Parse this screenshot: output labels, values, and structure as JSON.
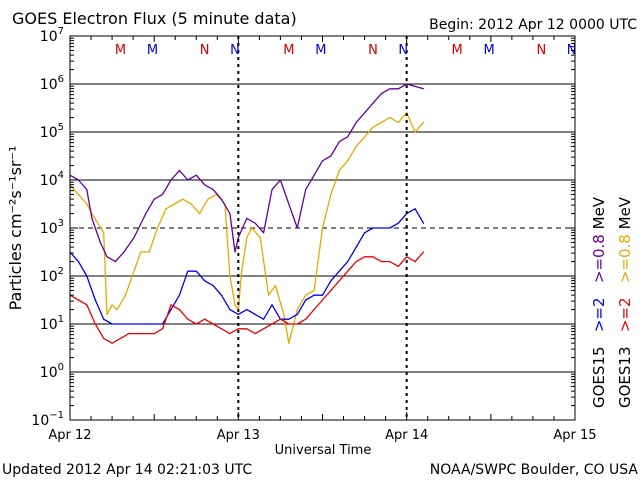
{
  "chart_data": {
    "type": "line",
    "title": "GOES Electron Flux (5 minute data)",
    "begin_label": "Begin: 2012 Apr 12 0000 UTC",
    "xlabel": "Universal Time",
    "ylabel": "Particles cm⁻²s⁻¹sr⁻¹",
    "x_ticks": [
      "Apr 12",
      "Apr 13",
      "Apr 14",
      "Apr 15"
    ],
    "xlim_days": [
      0,
      3
    ],
    "ylim_log10": [
      -1,
      7
    ],
    "y_tick_exponents": [
      7,
      6,
      5,
      4,
      3,
      2,
      1,
      0,
      -1
    ],
    "y_tick_base": "10",
    "alert_threshold_exponent": 3,
    "updated": "Updated 2012 Apr 14 02:21:03 UTC",
    "source": "NOAA/SWPC Boulder, CO USA",
    "markers": [
      {
        "label": "M",
        "satellite": "GOES13",
        "t": 0.3
      },
      {
        "label": "M",
        "satellite": "GOES15",
        "t": 0.49
      },
      {
        "label": "N",
        "satellite": "GOES13",
        "t": 0.8
      },
      {
        "label": "N",
        "satellite": "GOES15",
        "t": 0.98
      },
      {
        "label": "M",
        "satellite": "GOES13",
        "t": 1.3
      },
      {
        "label": "M",
        "satellite": "GOES15",
        "t": 1.49
      },
      {
        "label": "N",
        "satellite": "GOES13",
        "t": 1.8
      },
      {
        "label": "N",
        "satellite": "GOES15",
        "t": 1.98
      },
      {
        "label": "M",
        "satellite": "GOES13",
        "t": 2.3
      },
      {
        "label": "M",
        "satellite": "GOES15",
        "t": 2.49
      },
      {
        "label": "N",
        "satellite": "GOES13",
        "t": 2.8
      },
      {
        "label": "N",
        "satellite": "GOES15",
        "t": 2.98
      }
    ],
    "legend": [
      {
        "sat": "GOES15",
        "thr": ">=2",
        "sep": "   ",
        "energy": ">=0.8",
        "unit": "MeV"
      },
      {
        "sat": "GOES13",
        "thr": ">=2",
        "sep": "   ",
        "energy": ">=0.8",
        "unit": "MeV"
      }
    ],
    "series": [
      {
        "name": "GOES13 >=0.8 MeV",
        "color": "#e8a800",
        "t": [
          0.0,
          0.05,
          0.1,
          0.13,
          0.2,
          0.22,
          0.25,
          0.28,
          0.33,
          0.38,
          0.42,
          0.47,
          0.52,
          0.57,
          0.62,
          0.67,
          0.72,
          0.77,
          0.82,
          0.87,
          0.92,
          0.95,
          0.98,
          1.0,
          1.02,
          1.05,
          1.08,
          1.13,
          1.18,
          1.22,
          1.27,
          1.3,
          1.35,
          1.4,
          1.45,
          1.5,
          1.55,
          1.6,
          1.65,
          1.7,
          1.75,
          1.8,
          1.85,
          1.9,
          1.95,
          2.0,
          2.05,
          2.1
        ],
        "log10": [
          3.9,
          3.7,
          3.5,
          3.3,
          2.9,
          1.2,
          1.4,
          1.3,
          1.6,
          2.1,
          2.5,
          2.5,
          3.0,
          3.4,
          3.5,
          3.6,
          3.5,
          3.3,
          3.6,
          3.7,
          3.5,
          2.0,
          1.4,
          1.3,
          2.1,
          2.8,
          3.0,
          2.8,
          1.6,
          1.8,
          1.2,
          0.6,
          1.3,
          1.6,
          1.7,
          3.0,
          3.7,
          4.2,
          4.4,
          4.7,
          4.9,
          5.1,
          5.2,
          5.3,
          5.2,
          5.4,
          5.0,
          5.2
        ]
      },
      {
        "name": "GOES15 >=0.8 MeV",
        "color": "#660099",
        "t": [
          0.0,
          0.05,
          0.1,
          0.13,
          0.18,
          0.22,
          0.27,
          0.32,
          0.38,
          0.45,
          0.5,
          0.55,
          0.6,
          0.65,
          0.7,
          0.75,
          0.8,
          0.85,
          0.9,
          0.95,
          0.98,
          1.0,
          1.05,
          1.1,
          1.15,
          1.2,
          1.25,
          1.3,
          1.35,
          1.4,
          1.45,
          1.5,
          1.55,
          1.6,
          1.65,
          1.7,
          1.75,
          1.8,
          1.85,
          1.9,
          1.95,
          2.0,
          2.05,
          2.1
        ],
        "log10": [
          4.1,
          4.0,
          3.8,
          3.2,
          2.7,
          2.4,
          2.3,
          2.5,
          2.8,
          3.3,
          3.6,
          3.7,
          4.0,
          4.2,
          4.0,
          4.1,
          3.9,
          3.8,
          3.6,
          3.3,
          2.5,
          2.8,
          3.2,
          3.1,
          2.9,
          3.8,
          4.0,
          3.5,
          3.0,
          3.8,
          4.1,
          4.4,
          4.5,
          4.8,
          4.9,
          5.2,
          5.4,
          5.6,
          5.8,
          5.9,
          5.9,
          6.0,
          5.95,
          5.9
        ]
      },
      {
        "name": "GOES15 >=2 MeV",
        "color": "#0000ee",
        "t": [
          0.0,
          0.05,
          0.1,
          0.15,
          0.2,
          0.25,
          0.3,
          0.35,
          0.4,
          0.45,
          0.5,
          0.55,
          0.6,
          0.65,
          0.7,
          0.75,
          0.8,
          0.85,
          0.9,
          0.95,
          1.0,
          1.05,
          1.1,
          1.15,
          1.2,
          1.25,
          1.3,
          1.35,
          1.4,
          1.45,
          1.5,
          1.55,
          1.6,
          1.65,
          1.7,
          1.75,
          1.8,
          1.85,
          1.9,
          1.95,
          2.0,
          2.05,
          2.1
        ],
        "log10": [
          2.5,
          2.3,
          2.0,
          1.5,
          1.1,
          1.0,
          1.0,
          1.0,
          1.0,
          1.0,
          1.0,
          1.0,
          1.3,
          1.6,
          2.1,
          2.1,
          1.9,
          1.8,
          1.6,
          1.3,
          1.2,
          1.3,
          1.2,
          1.1,
          1.4,
          1.1,
          1.1,
          1.2,
          1.5,
          1.6,
          1.6,
          1.9,
          2.1,
          2.3,
          2.6,
          2.9,
          3.0,
          3.0,
          3.0,
          3.1,
          3.3,
          3.4,
          3.1
        ]
      },
      {
        "name": "GOES13 >=2 MeV",
        "color": "#ee0000",
        "t": [
          0.0,
          0.05,
          0.1,
          0.15,
          0.2,
          0.25,
          0.3,
          0.35,
          0.4,
          0.45,
          0.5,
          0.55,
          0.6,
          0.65,
          0.7,
          0.75,
          0.8,
          0.85,
          0.9,
          0.95,
          1.0,
          1.05,
          1.1,
          1.15,
          1.2,
          1.25,
          1.3,
          1.35,
          1.4,
          1.45,
          1.5,
          1.55,
          1.6,
          1.65,
          1.7,
          1.75,
          1.8,
          1.85,
          1.9,
          1.95,
          2.0,
          2.05,
          2.1
        ],
        "log10": [
          1.6,
          1.5,
          1.4,
          1.0,
          0.7,
          0.6,
          0.7,
          0.8,
          0.8,
          0.8,
          0.8,
          0.9,
          1.4,
          1.3,
          1.1,
          1.0,
          1.1,
          1.0,
          0.9,
          0.8,
          0.9,
          0.9,
          0.8,
          0.9,
          1.0,
          1.1,
          1.0,
          1.0,
          1.1,
          1.3,
          1.5,
          1.7,
          1.9,
          2.1,
          2.3,
          2.4,
          2.4,
          2.3,
          2.3,
          2.2,
          2.4,
          2.3,
          2.5
        ]
      }
    ]
  }
}
